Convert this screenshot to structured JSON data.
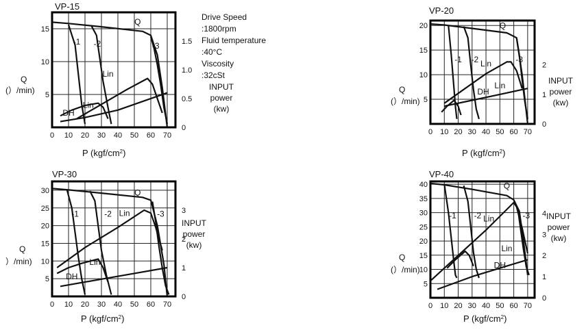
{
  "conditions": {
    "lines": [
      "Drive Speed",
      ":1800rpm",
      "Fluid temperature",
      ":40°C",
      "Viscosity",
      ":32cSt"
    ]
  },
  "common": {
    "x_unit_prefix": "P",
    "x_unit": "(kgf/cm",
    "x_unit_sup": "2",
    "x_unit_close": ")",
    "q_label": "Q",
    "q_unit": "(）/min)",
    "power_lines": [
      "INPUT",
      "power",
      "(kw)"
    ]
  },
  "chart_data": [
    {
      "type": "line",
      "title": "VP-15",
      "x_ticks": [
        0,
        10,
        20,
        30,
        40,
        50,
        60,
        70
      ],
      "xlim": [
        0,
        75
      ],
      "q_ticks": [
        5,
        10,
        15
      ],
      "q_lim": [
        0,
        17.5
      ],
      "power_ticks": [
        "0",
        "0.5",
        "1.0",
        "1.5"
      ],
      "power_values": [
        0,
        0.5,
        1.0,
        1.5
      ],
      "power_lim": [
        0,
        2.0
      ],
      "q_label_text": "Q",
      "q_unit_text": "(）/min)",
      "series": [
        {
          "name": "Q",
          "axis": "q",
          "x": [
            0,
            10,
            30,
            55,
            60,
            64,
            67,
            70
          ],
          "y": [
            16,
            15.8,
            15.3,
            14.6,
            14.0,
            11.0,
            6.0,
            0
          ]
        },
        {
          "name": "-1",
          "axis": "q",
          "x": [
            10,
            14,
            16,
            18,
            20
          ],
          "y": [
            15.6,
            12.5,
            8.0,
            3.5,
            0.5
          ]
        },
        {
          "name": "-2",
          "axis": "q",
          "x": [
            24,
            27,
            29,
            31,
            34,
            36
          ],
          "y": [
            15.4,
            14.0,
            10.5,
            7.0,
            3.0,
            0.5
          ]
        },
        {
          "name": "-3",
          "axis": "q",
          "x": [
            60,
            62,
            64,
            66,
            68,
            70
          ],
          "y": [
            13.8,
            12.0,
            9.5,
            6.5,
            3.0,
            0.5
          ]
        },
        {
          "name": "Lin",
          "axis": "power",
          "x": [
            15,
            30,
            45,
            58,
            61,
            64,
            67
          ],
          "y": [
            0.15,
            0.4,
            0.65,
            0.85,
            0.75,
            0.5,
            0.25
          ]
        },
        {
          "name": "Lin",
          "axis": "power",
          "x": [
            5,
            12,
            20,
            28,
            31,
            34
          ],
          "y": [
            0.2,
            0.3,
            0.38,
            0.42,
            0.35,
            0.15
          ]
        },
        {
          "name": "DH",
          "axis": "power",
          "x": [
            5,
            20,
            40,
            70
          ],
          "y": [
            0.1,
            0.17,
            0.3,
            0.6
          ]
        }
      ],
      "labels": [
        {
          "text": "Q",
          "x": 52,
          "y": 15.6,
          "axis": "q"
        },
        {
          "text": "-1",
          "x": 15,
          "y": 12.6,
          "axis": "q"
        },
        {
          "text": "-2",
          "x": 27.5,
          "y": 12.3,
          "axis": "q"
        },
        {
          "text": "-3",
          "x": 63,
          "y": 12.0,
          "axis": "q"
        },
        {
          "text": "Lin",
          "x": 34,
          "y": 0.88,
          "axis": "power"
        },
        {
          "text": "Lin",
          "x": 22,
          "y": 0.34,
          "axis": "power"
        },
        {
          "text": "DH",
          "x": 10,
          "y": 0.2,
          "axis": "power"
        }
      ]
    },
    {
      "type": "line",
      "title": "VP-20",
      "x_ticks": [
        0,
        10,
        20,
        30,
        40,
        50,
        60,
        70
      ],
      "xlim": [
        0,
        75
      ],
      "q_ticks": [
        5,
        10,
        15,
        20
      ],
      "q_lim": [
        0,
        21
      ],
      "power_ticks": [
        "0",
        "1",
        "2"
      ],
      "power_values": [
        0,
        1,
        2
      ],
      "power_lim": [
        0,
        3.5
      ],
      "q_label_text": "Q",
      "q_unit_text": "(）/min)",
      "series": [
        {
          "name": "Q",
          "axis": "q",
          "x": [
            0,
            10,
            30,
            55,
            62,
            66,
            70
          ],
          "y": [
            20.3,
            20.1,
            19.4,
            18.5,
            17.5,
            10.0,
            0
          ]
        },
        {
          "name": "-1",
          "axis": "q",
          "x": [
            13,
            15,
            17,
            18,
            19
          ],
          "y": [
            20.0,
            14.0,
            7.0,
            3.5,
            1.0
          ]
        },
        {
          "name": "-2",
          "axis": "q",
          "x": [
            24,
            27,
            29,
            31,
            33,
            35
          ],
          "y": [
            19.8,
            17.5,
            12.0,
            7.0,
            3.0,
            1.0
          ]
        },
        {
          "name": "-3",
          "axis": "q",
          "x": [
            62,
            64,
            66,
            68,
            70
          ],
          "y": [
            17.5,
            14.0,
            9.0,
            4.5,
            1.0
          ]
        },
        {
          "name": "Lin",
          "axis": "power",
          "x": [
            10,
            25,
            40,
            55,
            58,
            62,
            66
          ],
          "y": [
            0.7,
            1.2,
            1.7,
            2.1,
            2.1,
            1.8,
            1.2
          ]
        },
        {
          "name": "Lin",
          "axis": "power",
          "x": [
            8,
            12,
            17,
            20,
            22
          ],
          "y": [
            0.4,
            0.6,
            0.8,
            0.6,
            0.3
          ]
        },
        {
          "name": "DH",
          "axis": "power",
          "x": [
            10,
            30,
            50,
            70
          ],
          "y": [
            0.6,
            0.8,
            1.0,
            1.2
          ]
        }
      ],
      "labels": [
        {
          "text": "Q",
          "x": 52,
          "y": 19.4,
          "axis": "q"
        },
        {
          "text": "-1",
          "x": 20,
          "y": 12.5,
          "axis": "q"
        },
        {
          "text": "-2",
          "x": 32,
          "y": 12.5,
          "axis": "q"
        },
        {
          "text": "-3",
          "x": 64,
          "y": 12.5,
          "axis": "q"
        },
        {
          "text": "Lin",
          "x": 40,
          "y": 1.95,
          "axis": "power"
        },
        {
          "text": "Lin",
          "x": 50,
          "y": 1.2,
          "axis": "power"
        },
        {
          "text": "DH",
          "x": 38,
          "y": 1.0,
          "axis": "power"
        }
      ]
    },
    {
      "type": "line",
      "title": "VP-30",
      "x_ticks": [
        0,
        10,
        20,
        30,
        40,
        50,
        60,
        70
      ],
      "xlim": [
        0,
        75
      ],
      "q_ticks": [
        5,
        10,
        15,
        20,
        25,
        30
      ],
      "q_lim": [
        0,
        32.5
      ],
      "power_ticks": [
        "0",
        "1",
        "2",
        "3"
      ],
      "power_values": [
        0,
        1,
        2,
        3
      ],
      "power_lim": [
        0,
        4.0
      ],
      "q_label_text": "Q",
      "q_unit_text": "）/min)",
      "series": [
        {
          "name": "Q",
          "axis": "q",
          "x": [
            0,
            10,
            30,
            55,
            60,
            64,
            68,
            70
          ],
          "y": [
            30.5,
            30.1,
            29.2,
            28.0,
            27.2,
            20.0,
            9.0,
            0
          ]
        },
        {
          "name": "-1",
          "axis": "q",
          "x": [
            9,
            12,
            14,
            16,
            18,
            20
          ],
          "y": [
            30.2,
            25.0,
            18.0,
            11.0,
            5.0,
            0.5
          ]
        },
        {
          "name": "-2",
          "axis": "q",
          "x": [
            23,
            26,
            28,
            30,
            33,
            36
          ],
          "y": [
            29.8,
            27.0,
            20.0,
            13.0,
            6.0,
            0.5
          ]
        },
        {
          "name": "-3",
          "axis": "q",
          "x": [
            61,
            63,
            65,
            67,
            69,
            71
          ],
          "y": [
            26.8,
            21.0,
            14.0,
            8.0,
            3.0,
            0.5
          ]
        },
        {
          "name": "Lin",
          "axis": "power",
          "x": [
            3,
            20,
            40,
            56,
            60,
            63,
            67
          ],
          "y": [
            1.0,
            1.7,
            2.4,
            3.0,
            2.9,
            2.4,
            1.6
          ]
        },
        {
          "name": "Lin",
          "axis": "power",
          "x": [
            3,
            10,
            18,
            28,
            31,
            34
          ],
          "y": [
            0.8,
            1.0,
            1.15,
            1.3,
            1.0,
            0.5
          ]
        },
        {
          "name": "DH",
          "axis": "power",
          "x": [
            5,
            30,
            50,
            70
          ],
          "y": [
            0.35,
            0.6,
            0.8,
            1.0
          ]
        }
      ],
      "labels": [
        {
          "text": "Q",
          "x": 52,
          "y": 28.5,
          "axis": "q"
        },
        {
          "text": "-1",
          "x": 14,
          "y": 22.5,
          "axis": "q"
        },
        {
          "text": "-2",
          "x": 34,
          "y": 22.5,
          "axis": "q"
        },
        {
          "text": "-3",
          "x": 66,
          "y": 22.5,
          "axis": "q"
        },
        {
          "text": "Lin",
          "x": 44,
          "y": 2.8,
          "axis": "power"
        },
        {
          "text": "Lin",
          "x": 26,
          "y": 1.1,
          "axis": "power"
        },
        {
          "text": "DH",
          "x": 12,
          "y": 0.6,
          "axis": "power"
        }
      ]
    },
    {
      "type": "line",
      "title": "VP-40",
      "x_ticks": [
        0,
        10,
        20,
        30,
        40,
        50,
        60,
        70
      ],
      "xlim": [
        0,
        75
      ],
      "q_ticks": [
        5,
        10,
        15,
        20,
        25,
        30,
        35,
        40
      ],
      "q_lim": [
        0,
        41
      ],
      "power_ticks": [
        "0",
        "1",
        "2",
        "3",
        "4"
      ],
      "power_values": [
        0,
        1,
        2,
        3,
        4
      ],
      "power_lim": [
        0,
        5.5
      ],
      "q_label_text": "Q",
      "q_unit_text": "(）/min)",
      "series": [
        {
          "name": "Q",
          "axis": "q",
          "x": [
            0,
            10,
            30,
            55,
            60,
            64,
            67,
            70
          ],
          "y": [
            40.3,
            39.8,
            38.2,
            36.0,
            34.5,
            30.5,
            20.0,
            8.0
          ]
        },
        {
          "name": "-1",
          "axis": "q",
          "x": [
            10,
            13,
            15,
            17,
            18,
            19
          ],
          "y": [
            40.0,
            30.0,
            21.0,
            12.0,
            8.0,
            7.0
          ]
        },
        {
          "name": "-2",
          "axis": "q",
          "x": [
            24,
            27,
            29,
            31,
            33,
            35
          ],
          "y": [
            39.5,
            34.0,
            25.0,
            16.0,
            10.0,
            7.0
          ]
        },
        {
          "name": "-3",
          "axis": "q",
          "x": [
            63,
            65,
            67,
            69,
            71
          ],
          "y": [
            31.0,
            24.0,
            17.0,
            11.0,
            8.0
          ]
        },
        {
          "name": "Lin",
          "axis": "power",
          "x": [
            0,
            20,
            40,
            60,
            62,
            66,
            70
          ],
          "y": [
            0.8,
            2.0,
            3.2,
            4.5,
            4.3,
            3.3,
            2.1
          ]
        },
        {
          "name": "Lin",
          "axis": "power",
          "x": [
            12,
            18,
            25,
            28,
            31
          ],
          "y": [
            1.4,
            1.8,
            2.2,
            2.0,
            1.5
          ]
        },
        {
          "name": "DH",
          "axis": "power",
          "x": [
            5,
            30,
            50,
            70
          ],
          "y": [
            0.4,
            1.0,
            1.4,
            1.8
          ]
        }
      ],
      "labels": [
        {
          "text": "Q",
          "x": 55,
          "y": 38.5,
          "axis": "q"
        },
        {
          "text": "-1",
          "x": 16,
          "y": 28.0,
          "axis": "q"
        },
        {
          "text": "-2",
          "x": 34,
          "y": 28.0,
          "axis": "q"
        },
        {
          "text": "-3",
          "x": 69,
          "y": 28.0,
          "axis": "q"
        },
        {
          "text": "Lin",
          "x": 42,
          "y": 3.6,
          "axis": "power"
        },
        {
          "text": "Lin",
          "x": 55,
          "y": 2.2,
          "axis": "power"
        },
        {
          "text": "DH",
          "x": 50,
          "y": 1.4,
          "axis": "power"
        }
      ]
    }
  ]
}
